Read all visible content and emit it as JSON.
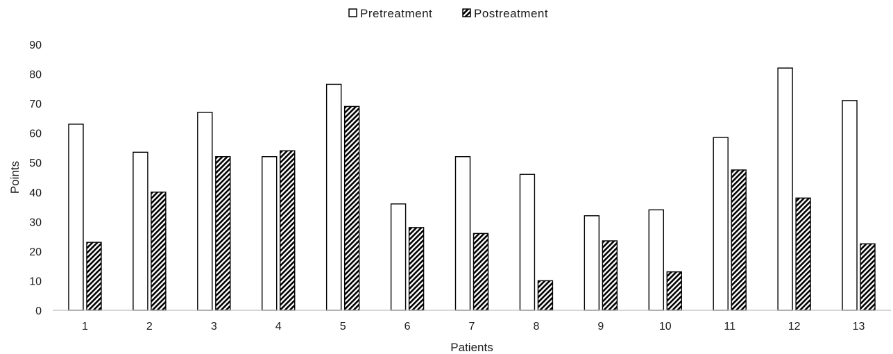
{
  "chart_data": {
    "type": "bar",
    "categories": [
      "1",
      "2",
      "3",
      "4",
      "5",
      "6",
      "7",
      "8",
      "9",
      "10",
      "11",
      "12",
      "13"
    ],
    "series": [
      {
        "name": "Pretreatment",
        "values": [
          63,
          53.5,
          67,
          52,
          76.5,
          36,
          52,
          46,
          32,
          34,
          58.5,
          82,
          71
        ],
        "fill": "#ffffff",
        "pattern": "none"
      },
      {
        "name": "Postreatment",
        "values": [
          23,
          40,
          52,
          54,
          69,
          28,
          26,
          10,
          23.5,
          13,
          47.5,
          38,
          22.5
        ],
        "fill": "#000000",
        "pattern": "diagonal-hatch"
      }
    ],
    "xlabel": "Patients",
    "ylabel": "Points",
    "ylim": [
      0,
      90
    ],
    "yticks": [
      0,
      10,
      20,
      30,
      40,
      50,
      60,
      70,
      80,
      90
    ],
    "grid": false,
    "legend_position": "top-center"
  }
}
